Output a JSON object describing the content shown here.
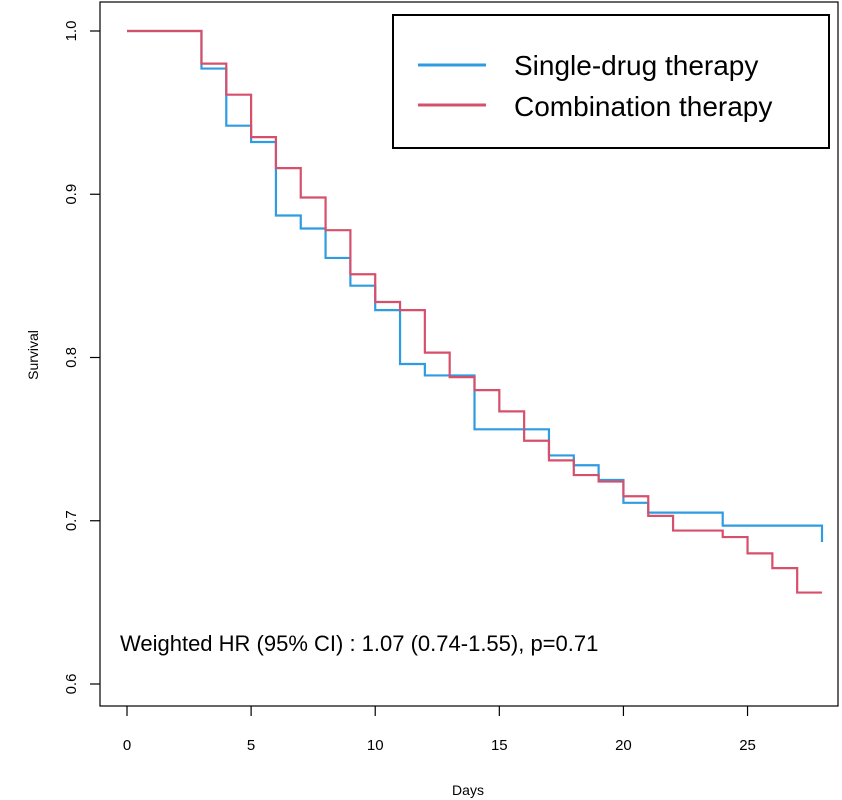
{
  "chart_data": {
    "type": "line",
    "xlabel": "Days",
    "ylabel": "Survival",
    "xlim": [
      0,
      28
    ],
    "ylim": [
      0.6,
      1.0
    ],
    "x_ticks": [
      "0",
      "5",
      "10",
      "15",
      "20",
      "25"
    ],
    "y_ticks": [
      "0.6",
      "0.7",
      "0.8",
      "0.9",
      "1.0"
    ],
    "grid": false,
    "legend_position": "top-right",
    "annotation": "Weighted HR (95% CI) : 1.07 (0.74-1.55), p=0.71",
    "series": [
      {
        "name": "Single-drug therapy",
        "color": "#2f9be0",
        "step": true,
        "x": [
          0,
          3,
          4,
          5,
          6,
          7,
          8,
          9,
          10,
          11,
          12,
          14,
          15,
          17,
          18,
          19,
          20,
          21,
          24,
          28,
          28
        ],
        "y": [
          1.0,
          0.977,
          0.942,
          0.932,
          0.887,
          0.879,
          0.861,
          0.844,
          0.829,
          0.796,
          0.789,
          0.756,
          0.756,
          0.74,
          0.734,
          0.725,
          0.711,
          0.705,
          0.697,
          0.697,
          0.687
        ]
      },
      {
        "name": "Combination therapy",
        "color": "#d6506b",
        "step": true,
        "x": [
          0,
          3,
          4,
          5,
          6,
          7,
          8,
          9,
          10,
          11,
          12,
          13,
          14,
          15,
          16,
          17,
          18,
          19,
          20,
          21,
          22,
          24,
          25,
          26,
          27,
          28
        ],
        "y": [
          1.0,
          0.98,
          0.961,
          0.935,
          0.916,
          0.898,
          0.878,
          0.851,
          0.834,
          0.829,
          0.803,
          0.788,
          0.78,
          0.767,
          0.749,
          0.737,
          0.728,
          0.724,
          0.715,
          0.703,
          0.694,
          0.69,
          0.68,
          0.671,
          0.656,
          0.656
        ]
      }
    ]
  }
}
